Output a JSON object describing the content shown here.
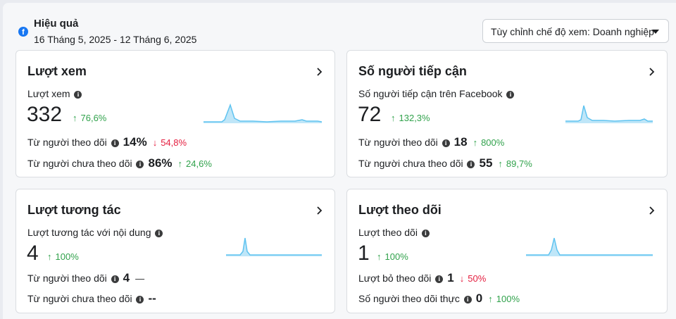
{
  "header": {
    "title": "Hiệu quả",
    "date_range": "16 Tháng 5, 2025 - 12 Tháng 6, 2025",
    "view_selector": "Tùy chỉnh chế độ xem: Doanh nghiệp",
    "platform_icon": "facebook-icon"
  },
  "cards": {
    "views": {
      "title": "Lượt xem",
      "metric_label": "Lượt xem",
      "value": "332",
      "change": "76,6%",
      "change_dir": "up",
      "rows": [
        {
          "label": "Từ người theo dõi",
          "value": "14%",
          "change": "54,8%",
          "dir": "down"
        },
        {
          "label": "Từ người chưa theo dõi",
          "value": "86%",
          "change": "24,6%",
          "dir": "up"
        }
      ]
    },
    "reach": {
      "title": "Số người tiếp cận",
      "metric_label": "Số người tiếp cận trên Facebook",
      "value": "72",
      "change": "132,3%",
      "change_dir": "up",
      "rows": [
        {
          "label": "Từ người theo dõi",
          "value": "18",
          "change": "800%",
          "dir": "up"
        },
        {
          "label": "Từ người chưa theo dõi",
          "value": "55",
          "change": "89,7%",
          "dir": "up"
        }
      ]
    },
    "interactions": {
      "title": "Lượt tương tác",
      "metric_label": "Lượt tương tác với nội dung",
      "value": "4",
      "change": "100%",
      "change_dir": "up",
      "rows": [
        {
          "label": "Từ người theo dõi",
          "value": "4",
          "change": "—",
          "dir": "none"
        },
        {
          "label": "Từ người chưa theo dõi",
          "value": "--",
          "change": "",
          "dir": "none"
        }
      ]
    },
    "follows": {
      "title": "Lượt theo dõi",
      "metric_label": "Lượt theo dõi",
      "value": "1",
      "change": "100%",
      "change_dir": "up",
      "rows": [
        {
          "label": "Lượt bỏ theo dõi",
          "value": "1",
          "change": "50%",
          "dir": "down"
        },
        {
          "label": "Số người theo dõi thực",
          "value": "0",
          "change": "100%",
          "dir": "up"
        }
      ]
    }
  },
  "icons": {
    "info": "info-icon",
    "chevron": "chevron-right-icon",
    "up": "arrow-up-icon",
    "down": "arrow-down-icon"
  },
  "colors": {
    "accent": "#1877f2",
    "up": "#31a24c",
    "down": "#e41e3f",
    "spark_line": "#5fc3f0",
    "spark_fill": "#bfe6f8"
  }
}
